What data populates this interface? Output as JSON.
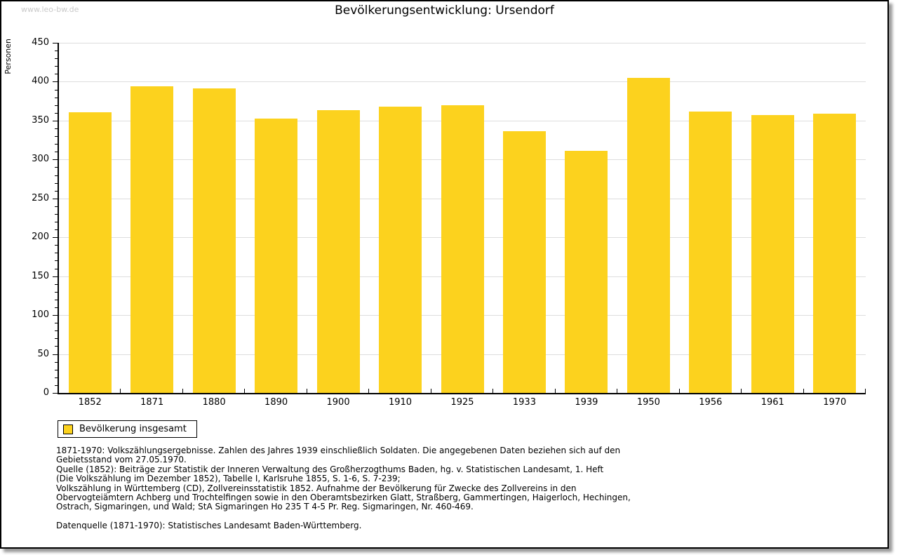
{
  "page": {
    "watermark": "www.leo-bw.de",
    "title": "Bevölkerungsentwicklung: Ursendorf"
  },
  "chart_data": {
    "type": "bar",
    "title": "Bevölkerungsentwicklung: Ursendorf",
    "xlabel": "",
    "ylabel": "Personen",
    "categories": [
      "1852",
      "1871",
      "1880",
      "1890",
      "1900",
      "1910",
      "1925",
      "1933",
      "1939",
      "1950",
      "1956",
      "1961",
      "1970"
    ],
    "values": [
      361,
      394,
      391,
      353,
      363,
      368,
      370,
      336,
      311,
      405,
      362,
      357,
      359
    ],
    "ylim": [
      0,
      450
    ],
    "y_major_step": 50,
    "y_minor_step": 10,
    "grid": true,
    "legend_position": "bottom-left",
    "legend": {
      "entries": [
        "Bevölkerung insgesamt"
      ]
    }
  },
  "notes": {
    "lines": [
      "1871-1970: Volkszählungsergebnisse. Zahlen des Jahres 1939 einschließlich Soldaten. Die angegebenen Daten beziehen sich auf den",
      "Gebietsstand vom 27.05.1970.",
      "Quelle (1852): Beiträge zur Statistik der Inneren Verwaltung des Großherzogthums Baden, hg. v. Statistischen Landesamt, 1. Heft",
      "(Die Volkszählung im Dezember 1852), Tabelle I, Karlsruhe 1855, S. 1-6, S. 7-239;",
      "Volkszählung in Württemberg (CD), Zollvereinsstatistik 1852. Aufnahme der Bevölkerung für Zwecke des Zollvereins in den",
      "Obervogteiämtern Achberg und Trochtelfingen sowie in den Oberamtsbezirken Glatt, Straßberg, Gammertingen, Haigerloch, Hechingen,",
      "Ostrach, Sigmaringen, und Wald; StA Sigmaringen Ho 235 T 4-5 Pr. Reg. Sigmaringen, Nr. 460-469."
    ],
    "datasource": "Datenquelle (1871-1970): Statistisches Landesamt Baden-Württemberg."
  },
  "colors": {
    "bar": "#FCD21E",
    "grid": "#DDDDDD",
    "axis": "#000000",
    "watermark": "#C9C9C9"
  }
}
